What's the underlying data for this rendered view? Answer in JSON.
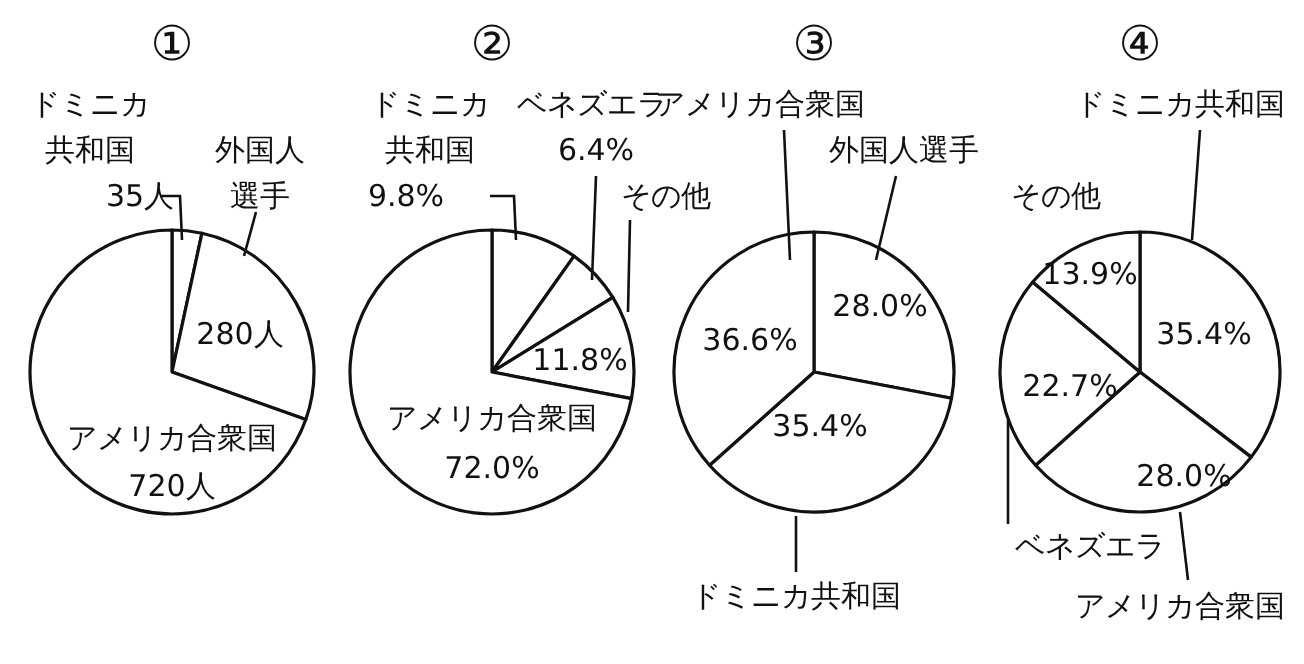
{
  "chart_data": [
    {
      "type": "pie",
      "title": "①",
      "categories": [
        "ドミニカ共和国",
        "外国人選手",
        "アメリカ合衆国"
      ],
      "values": [
        35,
        280,
        720
      ],
      "value_labels": [
        "35人",
        "280人",
        "720人"
      ],
      "colors": [
        "#ffffff",
        "#ffffff",
        "#ffffff"
      ]
    },
    {
      "type": "pie",
      "title": "②",
      "categories": [
        "ドミニカ共和国",
        "ベネズエラ",
        "その他",
        "アメリカ合衆国"
      ],
      "values": [
        9.8,
        6.4,
        11.8,
        72.0
      ],
      "value_labels": [
        "9.8%",
        "6.4%",
        "11.8%",
        "72.0%"
      ],
      "colors": [
        "#ffffff",
        "#ffffff",
        "#ffffff",
        "#ffffff"
      ]
    },
    {
      "type": "pie",
      "title": "③",
      "categories": [
        "外国人選手",
        "ドミニカ共和国",
        "アメリカ合衆国"
      ],
      "values": [
        28.0,
        35.4,
        36.6
      ],
      "value_labels": [
        "28.0%",
        "35.4%",
        "36.6%"
      ],
      "colors": [
        "#ffffff",
        "#ffffff",
        "#ffffff"
      ]
    },
    {
      "type": "pie",
      "title": "④",
      "categories": [
        "ドミニカ共和国",
        "アメリカ合衆国",
        "ベネズエラ",
        "その他"
      ],
      "values": [
        35.4,
        28.0,
        22.7,
        13.9
      ],
      "value_labels": [
        "35.4%",
        "28.0%",
        "22.7%",
        "13.9%"
      ],
      "colors": [
        "#ffffff",
        "#ffffff",
        "#ffffff",
        "#ffffff"
      ]
    }
  ]
}
